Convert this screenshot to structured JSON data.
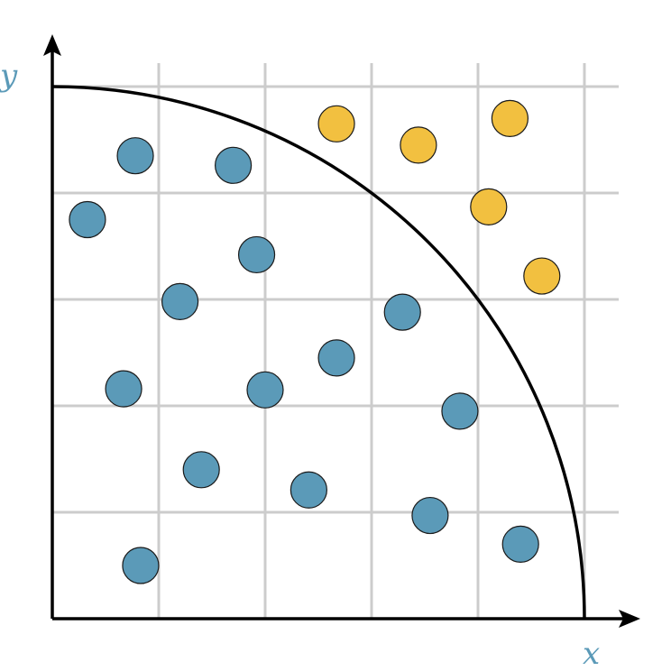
{
  "colors": {
    "inside": "#5b9ab8",
    "outside": "#f2c040",
    "grid": "#cccccc",
    "axis": "#000000",
    "label": "#5b9ab8"
  },
  "axes": {
    "x_label": "x",
    "y_label": "y"
  },
  "chart_data": {
    "type": "scatter",
    "xlim": [
      0,
      5
    ],
    "ylim": [
      0,
      5
    ],
    "grid": true,
    "curve": {
      "shape": "quarter-circle",
      "radius": 5
    },
    "series": [
      {
        "points": [
          [
            0.78,
            4.35
          ],
          [
            1.7,
            4.26
          ],
          [
            0.33,
            3.75
          ],
          [
            1.92,
            3.42
          ],
          [
            1.2,
            2.98
          ],
          [
            3.29,
            2.88
          ],
          [
            2.67,
            2.45
          ],
          [
            0.67,
            2.16
          ],
          [
            2.0,
            2.15
          ],
          [
            3.83,
            1.95
          ],
          [
            1.4,
            1.4
          ],
          [
            2.41,
            1.21
          ],
          [
            3.55,
            0.97
          ],
          [
            4.4,
            0.7
          ],
          [
            0.83,
            0.5
          ]
        ]
      },
      {
        "points": [
          [
            2.67,
            4.65
          ],
          [
            3.44,
            4.45
          ],
          [
            4.3,
            4.7
          ],
          [
            4.1,
            3.87
          ],
          [
            4.6,
            3.22
          ]
        ]
      }
    ]
  }
}
